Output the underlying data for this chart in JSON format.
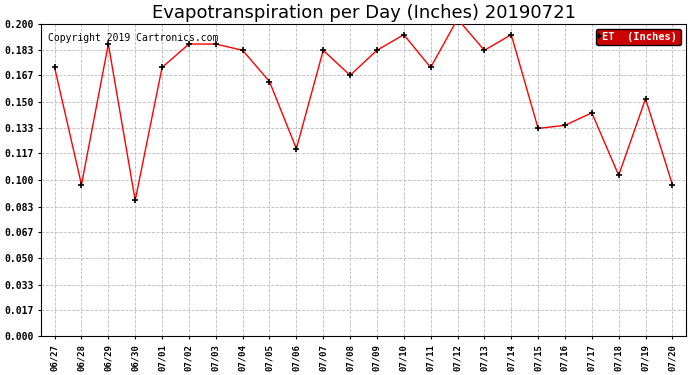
{
  "title": "Evapotranspiration per Day (Inches) 20190721",
  "copyright_text": "Copyright 2019 Cartronics.com",
  "legend_label": "ET  (Inches)",
  "x_labels": [
    "06/27",
    "06/28",
    "06/29",
    "06/30",
    "07/01",
    "07/02",
    "07/03",
    "07/04",
    "07/05",
    "07/06",
    "07/07",
    "07/08",
    "07/09",
    "07/10",
    "07/11",
    "07/12",
    "07/13",
    "07/14",
    "07/15",
    "07/16",
    "07/17",
    "07/18",
    "07/19",
    "07/20"
  ],
  "y_values": [
    0.172,
    0.097,
    0.187,
    0.087,
    0.172,
    0.187,
    0.187,
    0.183,
    0.163,
    0.12,
    0.183,
    0.167,
    0.183,
    0.193,
    0.172,
    0.203,
    0.183,
    0.193,
    0.133,
    0.135,
    0.143,
    0.103,
    0.152,
    0.097
  ],
  "line_color": "red",
  "marker_color": "black",
  "marker": "+",
  "y_min": 0.0,
  "y_max": 0.2,
  "y_ticks": [
    0.0,
    0.017,
    0.033,
    0.05,
    0.067,
    0.083,
    0.1,
    0.117,
    0.133,
    0.15,
    0.167,
    0.183,
    0.2
  ],
  "grid_color": "#bbbbbb",
  "background_color": "#ffffff",
  "title_fontsize": 13,
  "copyright_fontsize": 7,
  "legend_bg": "#cc0000",
  "legend_text_color": "white"
}
